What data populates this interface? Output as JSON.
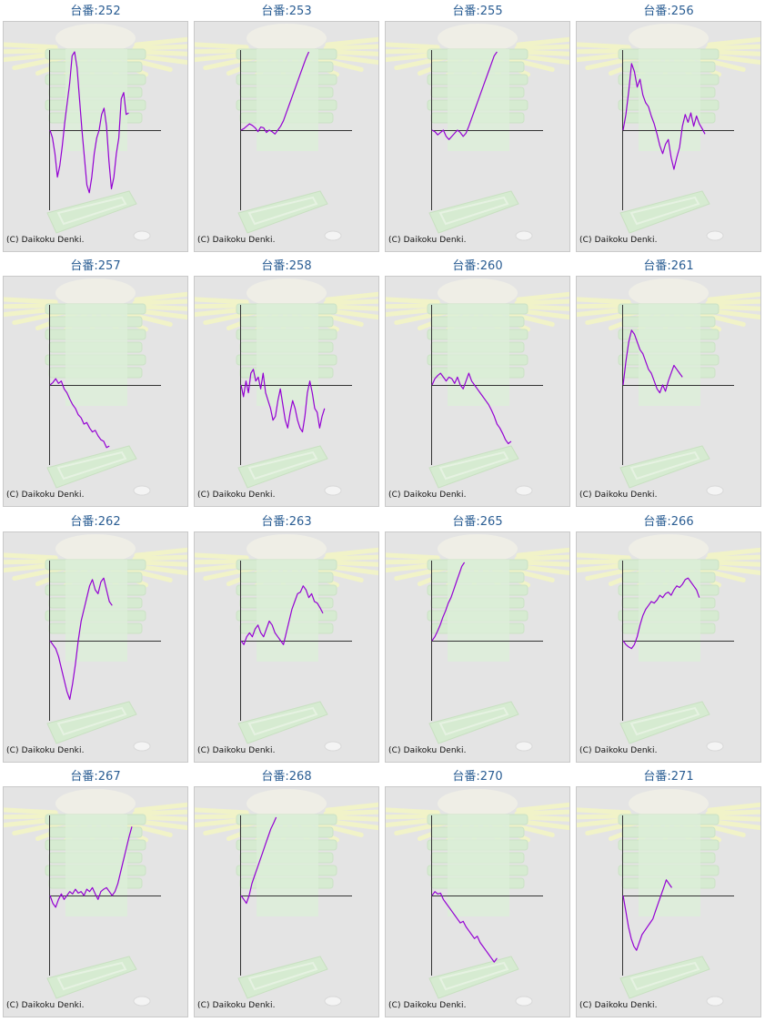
{
  "copyright": "(C) Daikoku Denki.",
  "colors": {
    "title": "#2a5d93",
    "line": "#9400d3",
    "axis": "#333333",
    "background": "#e4e4e4"
  },
  "chart_data": [
    {
      "type": "line",
      "title": "台番:252",
      "values": [
        0,
        -0.1,
        -0.3,
        -0.6,
        -0.45,
        -0.2,
        0.1,
        0.35,
        0.6,
        0.95,
        1.0,
        0.8,
        0.4,
        0.0,
        -0.35,
        -0.7,
        -0.8,
        -0.6,
        -0.3,
        -0.1,
        0.0,
        0.2,
        0.28,
        0.05,
        -0.4,
        -0.75,
        -0.6,
        -0.3,
        -0.1,
        0.4,
        0.48,
        0.2,
        0.22
      ]
    },
    {
      "type": "line",
      "title": "台番:253",
      "values": [
        0,
        0.02,
        0.05,
        0.08,
        0.06,
        0.03,
        -0.02,
        0.04,
        0.03,
        -0.03,
        0.0,
        -0.02,
        -0.05,
        0.0,
        0.05,
        0.12,
        0.22,
        0.32,
        0.42,
        0.52,
        0.62,
        0.72,
        0.82,
        0.92,
        1.0
      ]
    },
    {
      "type": "line",
      "title": "台番:255",
      "values": [
        0,
        -0.02,
        -0.06,
        -0.03,
        0.0,
        -0.08,
        -0.12,
        -0.08,
        -0.04,
        0.0,
        -0.03,
        -0.08,
        -0.04,
        0.05,
        0.15,
        0.25,
        0.35,
        0.45,
        0.55,
        0.65,
        0.75,
        0.85,
        0.95,
        1.0
      ]
    },
    {
      "type": "line",
      "title": "台番:256",
      "values": [
        0,
        0.2,
        0.5,
        0.85,
        0.75,
        0.55,
        0.65,
        0.45,
        0.35,
        0.3,
        0.18,
        0.08,
        -0.05,
        -0.2,
        -0.3,
        -0.18,
        -0.12,
        -0.35,
        -0.5,
        -0.35,
        -0.22,
        0.05,
        0.2,
        0.1,
        0.22,
        0.05,
        0.18,
        0.08,
        0.02,
        -0.05
      ]
    },
    {
      "type": "line",
      "title": "台番:257",
      "values": [
        0,
        0.03,
        0.08,
        0.02,
        0.05,
        -0.05,
        -0.1,
        -0.18,
        -0.25,
        -0.3,
        -0.38,
        -0.42,
        -0.5,
        -0.48,
        -0.55,
        -0.6,
        -0.58,
        -0.65,
        -0.7,
        -0.72,
        -0.8,
        -0.78
      ]
    },
    {
      "type": "line",
      "title": "台番:258",
      "values": [
        0,
        -0.15,
        0.05,
        -0.1,
        0.15,
        0.2,
        0.05,
        0.1,
        -0.05,
        0.15,
        -0.1,
        -0.2,
        -0.3,
        -0.45,
        -0.4,
        -0.2,
        -0.05,
        -0.25,
        -0.45,
        -0.55,
        -0.35,
        -0.2,
        -0.3,
        -0.45,
        -0.55,
        -0.6,
        -0.4,
        -0.1,
        0.05,
        -0.1,
        -0.3,
        -0.35,
        -0.55,
        -0.4,
        -0.3
      ]
    },
    {
      "type": "line",
      "title": "台番:260",
      "values": [
        0,
        0.08,
        0.12,
        0.15,
        0.1,
        0.05,
        0.1,
        0.08,
        0.02,
        0.1,
        0.0,
        -0.05,
        0.05,
        0.15,
        0.05,
        0.0,
        -0.05,
        -0.1,
        -0.15,
        -0.2,
        -0.25,
        -0.32,
        -0.4,
        -0.5,
        -0.55,
        -0.62,
        -0.7,
        -0.75,
        -0.72
      ]
    },
    {
      "type": "line",
      "title": "台番:261",
      "values": [
        0,
        0.3,
        0.55,
        0.7,
        0.65,
        0.55,
        0.45,
        0.4,
        0.3,
        0.2,
        0.15,
        0.05,
        -0.05,
        -0.1,
        0.0,
        -0.08,
        0.05,
        0.15,
        0.25,
        0.2,
        0.15,
        0.1
      ]
    },
    {
      "type": "line",
      "title": "台番:262",
      "values": [
        0,
        -0.05,
        -0.1,
        -0.2,
        -0.35,
        -0.5,
        -0.65,
        -0.75,
        -0.55,
        -0.3,
        0.0,
        0.25,
        0.4,
        0.55,
        0.7,
        0.78,
        0.65,
        0.6,
        0.75,
        0.8,
        0.65,
        0.5,
        0.45
      ]
    },
    {
      "type": "line",
      "title": "台番:263",
      "values": [
        0,
        -0.05,
        0.05,
        0.1,
        0.05,
        0.15,
        0.2,
        0.1,
        0.05,
        0.15,
        0.25,
        0.2,
        0.1,
        0.05,
        0.0,
        -0.05,
        0.1,
        0.25,
        0.4,
        0.5,
        0.6,
        0.62,
        0.7,
        0.65,
        0.55,
        0.6,
        0.5,
        0.48,
        0.42,
        0.35
      ]
    },
    {
      "type": "line",
      "title": "台番:265",
      "values": [
        0,
        0.05,
        0.12,
        0.2,
        0.3,
        0.38,
        0.48,
        0.55,
        0.65,
        0.75,
        0.85,
        0.95,
        1.0
      ]
    },
    {
      "type": "line",
      "title": "台番:266",
      "values": [
        0,
        -0.05,
        -0.08,
        -0.1,
        -0.05,
        0.05,
        0.2,
        0.32,
        0.4,
        0.45,
        0.5,
        0.48,
        0.52,
        0.58,
        0.55,
        0.6,
        0.62,
        0.58,
        0.65,
        0.7,
        0.68,
        0.72,
        0.78,
        0.8,
        0.75,
        0.7,
        0.65,
        0.55
      ]
    },
    {
      "type": "line",
      "title": "台番:267",
      "values": [
        0,
        -0.1,
        -0.15,
        -0.05,
        0.02,
        -0.05,
        0.0,
        0.05,
        0.02,
        0.08,
        0.03,
        0.05,
        0.0,
        0.08,
        0.05,
        0.1,
        0.02,
        -0.05,
        0.05,
        0.08,
        0.1,
        0.05,
        0.0,
        0.05,
        0.15,
        0.3,
        0.45,
        0.6,
        0.75,
        0.88
      ]
    },
    {
      "type": "line",
      "title": "台番:268",
      "values": [
        0,
        -0.05,
        -0.1,
        0.0,
        0.15,
        0.25,
        0.35,
        0.45,
        0.55,
        0.65,
        0.75,
        0.85,
        0.92,
        1.0
      ]
    },
    {
      "type": "line",
      "title": "台番:270",
      "values": [
        0,
        0.05,
        0.02,
        0.03,
        -0.05,
        -0.1,
        -0.15,
        -0.2,
        -0.25,
        -0.3,
        -0.35,
        -0.33,
        -0.4,
        -0.45,
        -0.5,
        -0.55,
        -0.52,
        -0.6,
        -0.65,
        -0.7,
        -0.75,
        -0.8,
        -0.85,
        -0.8
      ]
    },
    {
      "type": "line",
      "title": "台番:271",
      "values": [
        0,
        -0.2,
        -0.4,
        -0.55,
        -0.65,
        -0.7,
        -0.6,
        -0.5,
        -0.45,
        -0.4,
        -0.35,
        -0.3,
        -0.2,
        -0.1,
        0.0,
        0.1,
        0.2,
        0.15,
        0.1
      ]
    }
  ]
}
